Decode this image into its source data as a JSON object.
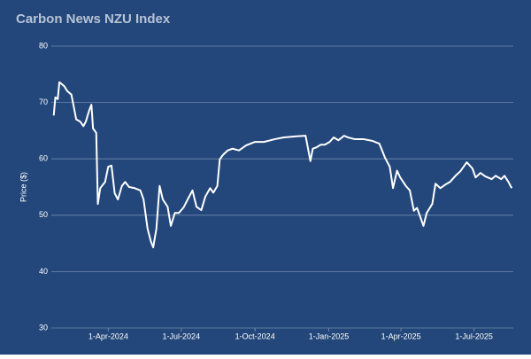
{
  "chart_data": {
    "type": "line",
    "title": "Carbon News NZU Index",
    "y_label": "Price ($)",
    "background": "#23477a",
    "grid": true,
    "xlim": [
      "2024-01-21",
      "2025-08-19"
    ],
    "xticks": [
      {
        "value": "2024-04-01",
        "label": "1-Apr-2024"
      },
      {
        "value": "2024-07-01",
        "label": "1-Jul-2024"
      },
      {
        "value": "2024-10-01",
        "label": "1-Oct-2024"
      },
      {
        "value": "2025-01-01",
        "label": "1-Jan-2025"
      },
      {
        "value": "2025-04-01",
        "label": "1-Apr-2025"
      },
      {
        "value": "2025-07-01",
        "label": "1-Jul-2025"
      }
    ],
    "ylim": [
      30,
      80
    ],
    "yticks": [
      30,
      40,
      50,
      60,
      70,
      80
    ],
    "x": [
      "2024-01-24",
      "2024-01-26",
      "2024-01-29",
      "2024-01-31",
      "2024-02-06",
      "2024-02-10",
      "2024-02-15",
      "2024-02-19",
      "2024-02-21",
      "2024-02-26",
      "2024-03-01",
      "2024-03-04",
      "2024-03-08",
      "2024-03-11",
      "2024-03-13",
      "2024-03-17",
      "2024-03-19",
      "2024-03-22",
      "2024-03-28",
      "2024-04-01",
      "2024-04-05",
      "2024-04-09",
      "2024-04-13",
      "2024-04-18",
      "2024-04-22",
      "2024-04-27",
      "2024-05-04",
      "2024-05-11",
      "2024-05-15",
      "2024-05-20",
      "2024-05-24",
      "2024-05-27",
      "2024-05-31",
      "2024-06-04",
      "2024-06-08",
      "2024-06-14",
      "2024-06-18",
      "2024-06-23",
      "2024-06-28",
      "2024-07-04",
      "2024-07-09",
      "2024-07-15",
      "2024-07-20",
      "2024-07-26",
      "2024-07-31",
      "2024-08-06",
      "2024-08-10",
      "2024-08-15",
      "2024-08-18",
      "2024-08-22",
      "2024-08-28",
      "2024-09-03",
      "2024-09-11",
      "2024-09-20",
      "2024-10-01",
      "2024-10-12",
      "2024-10-26",
      "2024-11-06",
      "2024-11-22",
      "2024-12-03",
      "2024-12-09",
      "2024-12-12",
      "2024-12-16",
      "2024-12-22",
      "2024-12-27",
      "2025-01-02",
      "2025-01-07",
      "2025-01-13",
      "2025-01-20",
      "2025-01-25",
      "2025-02-02",
      "2025-02-13",
      "2025-02-24",
      "2025-03-05",
      "2025-03-12",
      "2025-03-18",
      "2025-03-22",
      "2025-03-27",
      "2025-03-31",
      "2025-04-07",
      "2025-04-12",
      "2025-04-17",
      "2025-04-21",
      "2025-04-25",
      "2025-04-29",
      "2025-05-03",
      "2025-05-10",
      "2025-05-14",
      "2025-05-20",
      "2025-05-27",
      "2025-06-01",
      "2025-06-08",
      "2025-06-14",
      "2025-06-22",
      "2025-06-29",
      "2025-07-03",
      "2025-07-09",
      "2025-07-15",
      "2025-07-23",
      "2025-07-28",
      "2025-08-04",
      "2025-08-08",
      "2025-08-13",
      "2025-08-17"
    ],
    "series": [
      {
        "name": "NZU",
        "color": "#ffffff",
        "values": [
          67.7,
          70.9,
          70.6,
          73.6,
          72.9,
          72,
          71.4,
          68.5,
          67,
          66.6,
          65.8,
          66.6,
          68.5,
          69.6,
          65.4,
          64.6,
          52,
          54.8,
          55.9,
          58.6,
          58.8,
          53.9,
          52.8,
          55.2,
          55.9,
          55,
          54.8,
          54.4,
          52.8,
          47.6,
          45.4,
          44.3,
          47.6,
          55.2,
          52.8,
          51.5,
          48.1,
          50.4,
          50.4,
          51.4,
          52.8,
          54.4,
          51.5,
          50.9,
          53.3,
          54.8,
          54,
          55.2,
          59.9,
          60.7,
          61.5,
          61.8,
          61.5,
          62.4,
          63,
          63,
          63.5,
          63.8,
          64,
          64.1,
          59.6,
          61.8,
          62,
          62.5,
          62.5,
          63,
          63.8,
          63.3,
          64.1,
          63.8,
          63.5,
          63.5,
          63.2,
          62.7,
          60.2,
          58.6,
          54.8,
          57.9,
          56.7,
          55.2,
          54.4,
          50.8,
          51.3,
          49.7,
          48.1,
          50.4,
          52,
          55.6,
          54.8,
          55.5,
          55.9,
          57,
          57.8,
          59.4,
          58.3,
          56.7,
          57.5,
          56.9,
          56.4,
          57,
          56.4,
          57,
          55.9,
          54.8
        ]
      }
    ]
  }
}
